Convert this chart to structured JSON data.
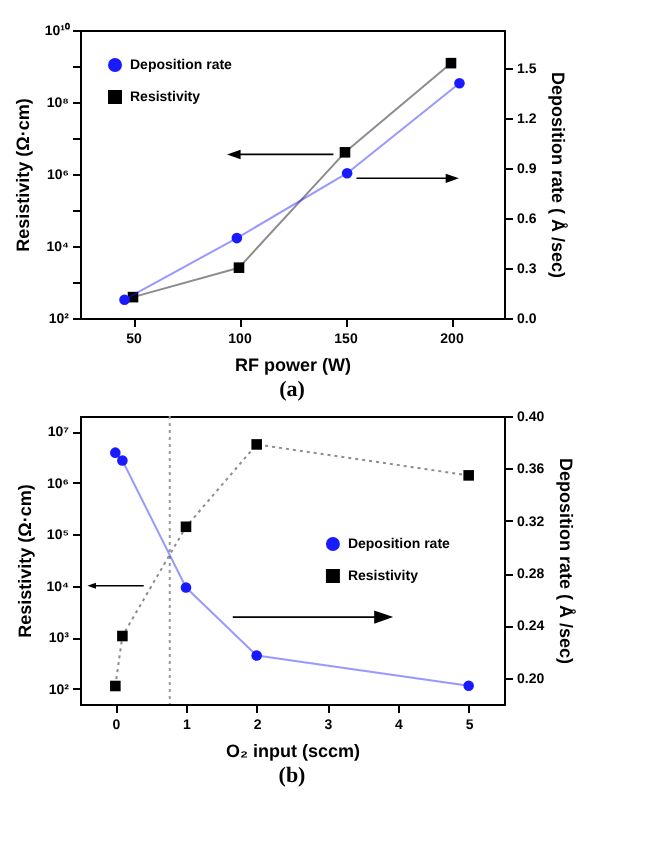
{
  "chart_data": [
    {
      "type": "line",
      "title": "(a)",
      "xlabel": "RF power (W)",
      "ylabel": "Resistivity (Ω·cm)",
      "y2label": "Deposition rate ( Å /sec)",
      "log": "y",
      "legend": "top left",
      "xlim": [
        25,
        225
      ],
      "xticks": [
        50,
        100,
        150,
        200
      ],
      "ylim": [
        100,
        10000000000
      ],
      "yticks": [
        {
          "value": 100,
          "label": "10²"
        },
        {
          "value": 1000,
          "label": null
        },
        {
          "value": 10000,
          "label": "10⁴"
        },
        {
          "value": 100000,
          "label": null
        },
        {
          "value": 1000000,
          "label": "10⁶"
        },
        {
          "value": 10000000,
          "label": null
        },
        {
          "value": 100000000,
          "label": "10⁸"
        },
        {
          "value": 1000000000,
          "label": null
        },
        {
          "value": 10000000000,
          "label": "10¹⁰"
        }
      ],
      "y2lim": [
        0,
        1.73
      ],
      "y2ticks": [
        {
          "value": 0,
          "label": "0.0"
        },
        {
          "value": 0.3,
          "label": "0.3"
        },
        {
          "value": 0.6,
          "label": "0.6"
        },
        {
          "value": 0.9,
          "label": "0.9"
        },
        {
          "value": 1.2,
          "label": "1.2"
        },
        {
          "value": 1.5,
          "label": "1.5"
        }
      ],
      "series": [
        {
          "name": "Deposition rate",
          "color": "#1a1aff",
          "marker": "circle",
          "line_style": "solid",
          "axis": "y2",
          "x": [
            46,
            99,
            151,
            204
          ],
          "values": [
            0.11,
            0.48,
            0.87,
            1.41
          ]
        },
        {
          "name": "Resistivity",
          "color": "#000000",
          "marker": "square",
          "line_style": "solid",
          "x": [
            50,
            100,
            150,
            200
          ],
          "values": [
            380,
            2500,
            4000000,
            1200000000
          ]
        }
      ]
    },
    {
      "type": "line",
      "title": "(b)",
      "xlabel": "O₂ input (sccm)",
      "ylabel": "Resistivity (Ω·cm)",
      "y2label": "Deposition rate ( Å /sec)",
      "log": "y",
      "legend": "right",
      "xlim": [
        -0.5,
        5.5
      ],
      "xticks": [
        0,
        1,
        2,
        3,
        4,
        5
      ],
      "ylim": [
        50,
        20000000
      ],
      "yticks": [
        {
          "value": 100,
          "label": "10²"
        },
        {
          "value": 1000,
          "label": "10³"
        },
        {
          "value": 10000,
          "label": "10⁴"
        },
        {
          "value": 100000,
          "label": "10⁵"
        },
        {
          "value": 1000000,
          "label": "10⁶"
        },
        {
          "value": 10000000,
          "label": "10⁷"
        }
      ],
      "y2lim": [
        0.18,
        0.4
      ],
      "y2ticks": [
        {
          "value": 0.2,
          "label": "0.20"
        },
        {
          "value": 0.24,
          "label": "0.24"
        },
        {
          "value": 0.28,
          "label": "0.28"
        },
        {
          "value": 0.32,
          "label": "0.32"
        },
        {
          "value": 0.36,
          "label": "0.36"
        },
        {
          "value": 0.4,
          "label": "0.40"
        }
      ],
      "ref_lines": [
        {
          "axis": "x",
          "value": 0.77,
          "color": "#999999",
          "line_style": "dotted"
        }
      ],
      "series": [
        {
          "name": "Resistivity",
          "color": "#000000",
          "marker": "square",
          "line_style": "dotted",
          "x": [
            0,
            0.1,
            1,
            2,
            5
          ],
          "values": [
            112,
            1050,
            140000,
            5600000,
            1400000
          ]
        },
        {
          "name": "Deposition rate",
          "color": "#1a1aff",
          "marker": "circle",
          "line_style": "solid",
          "axis": "y2",
          "x": [
            0,
            0.1,
            1,
            2,
            5
          ],
          "values": [
            0.372,
            0.366,
            0.269,
            0.217,
            0.194
          ]
        }
      ]
    }
  ]
}
